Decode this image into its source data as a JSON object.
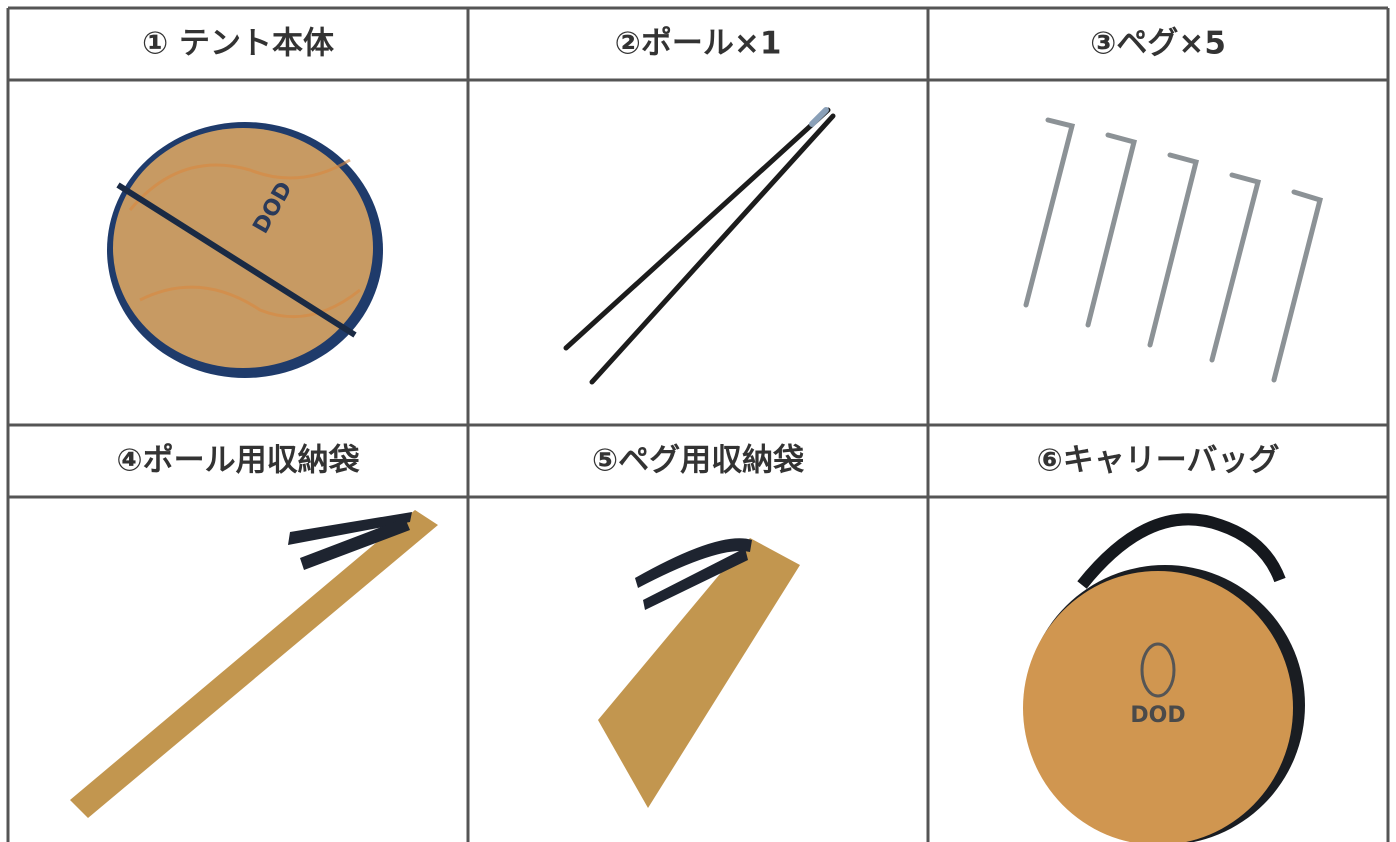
{
  "items": [
    {
      "label": "① テント本体"
    },
    {
      "label": "②ポール×1"
    },
    {
      "label": "③ペグ×5"
    },
    {
      "label": "④ポール用収納袋"
    },
    {
      "label": "⑤ペグ用収納袋"
    },
    {
      "label": "⑥キャリーバッグ"
    }
  ]
}
